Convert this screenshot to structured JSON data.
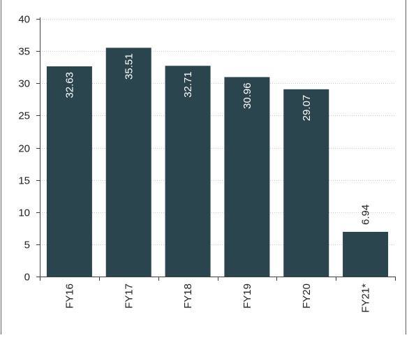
{
  "chart_data": {
    "type": "bar",
    "categories": [
      "FY16",
      "FY17",
      "FY18",
      "FY19",
      "FY20",
      "FY21*"
    ],
    "values": [
      32.63,
      35.51,
      32.71,
      30.96,
      29.07,
      6.94
    ],
    "value_labels": [
      "32.63",
      "35.51",
      "32.71",
      "30.96",
      "29.07",
      "6.94"
    ],
    "title": "",
    "xlabel": "",
    "ylabel": "",
    "ylim": [
      0,
      40
    ],
    "yticks": [
      0,
      5,
      10,
      15,
      20,
      25,
      30,
      35,
      40
    ],
    "ytick_labels": [
      "0",
      "5",
      "10",
      "15",
      "20",
      "25",
      "30",
      "35",
      "40"
    ],
    "grid": true,
    "legend": "none",
    "colors": {
      "bar": "#2b454e",
      "grid": "#c8c8c8",
      "axis": "#404040",
      "text": "#222222",
      "inside_label": "#ffffff",
      "frame": "#606060"
    }
  }
}
